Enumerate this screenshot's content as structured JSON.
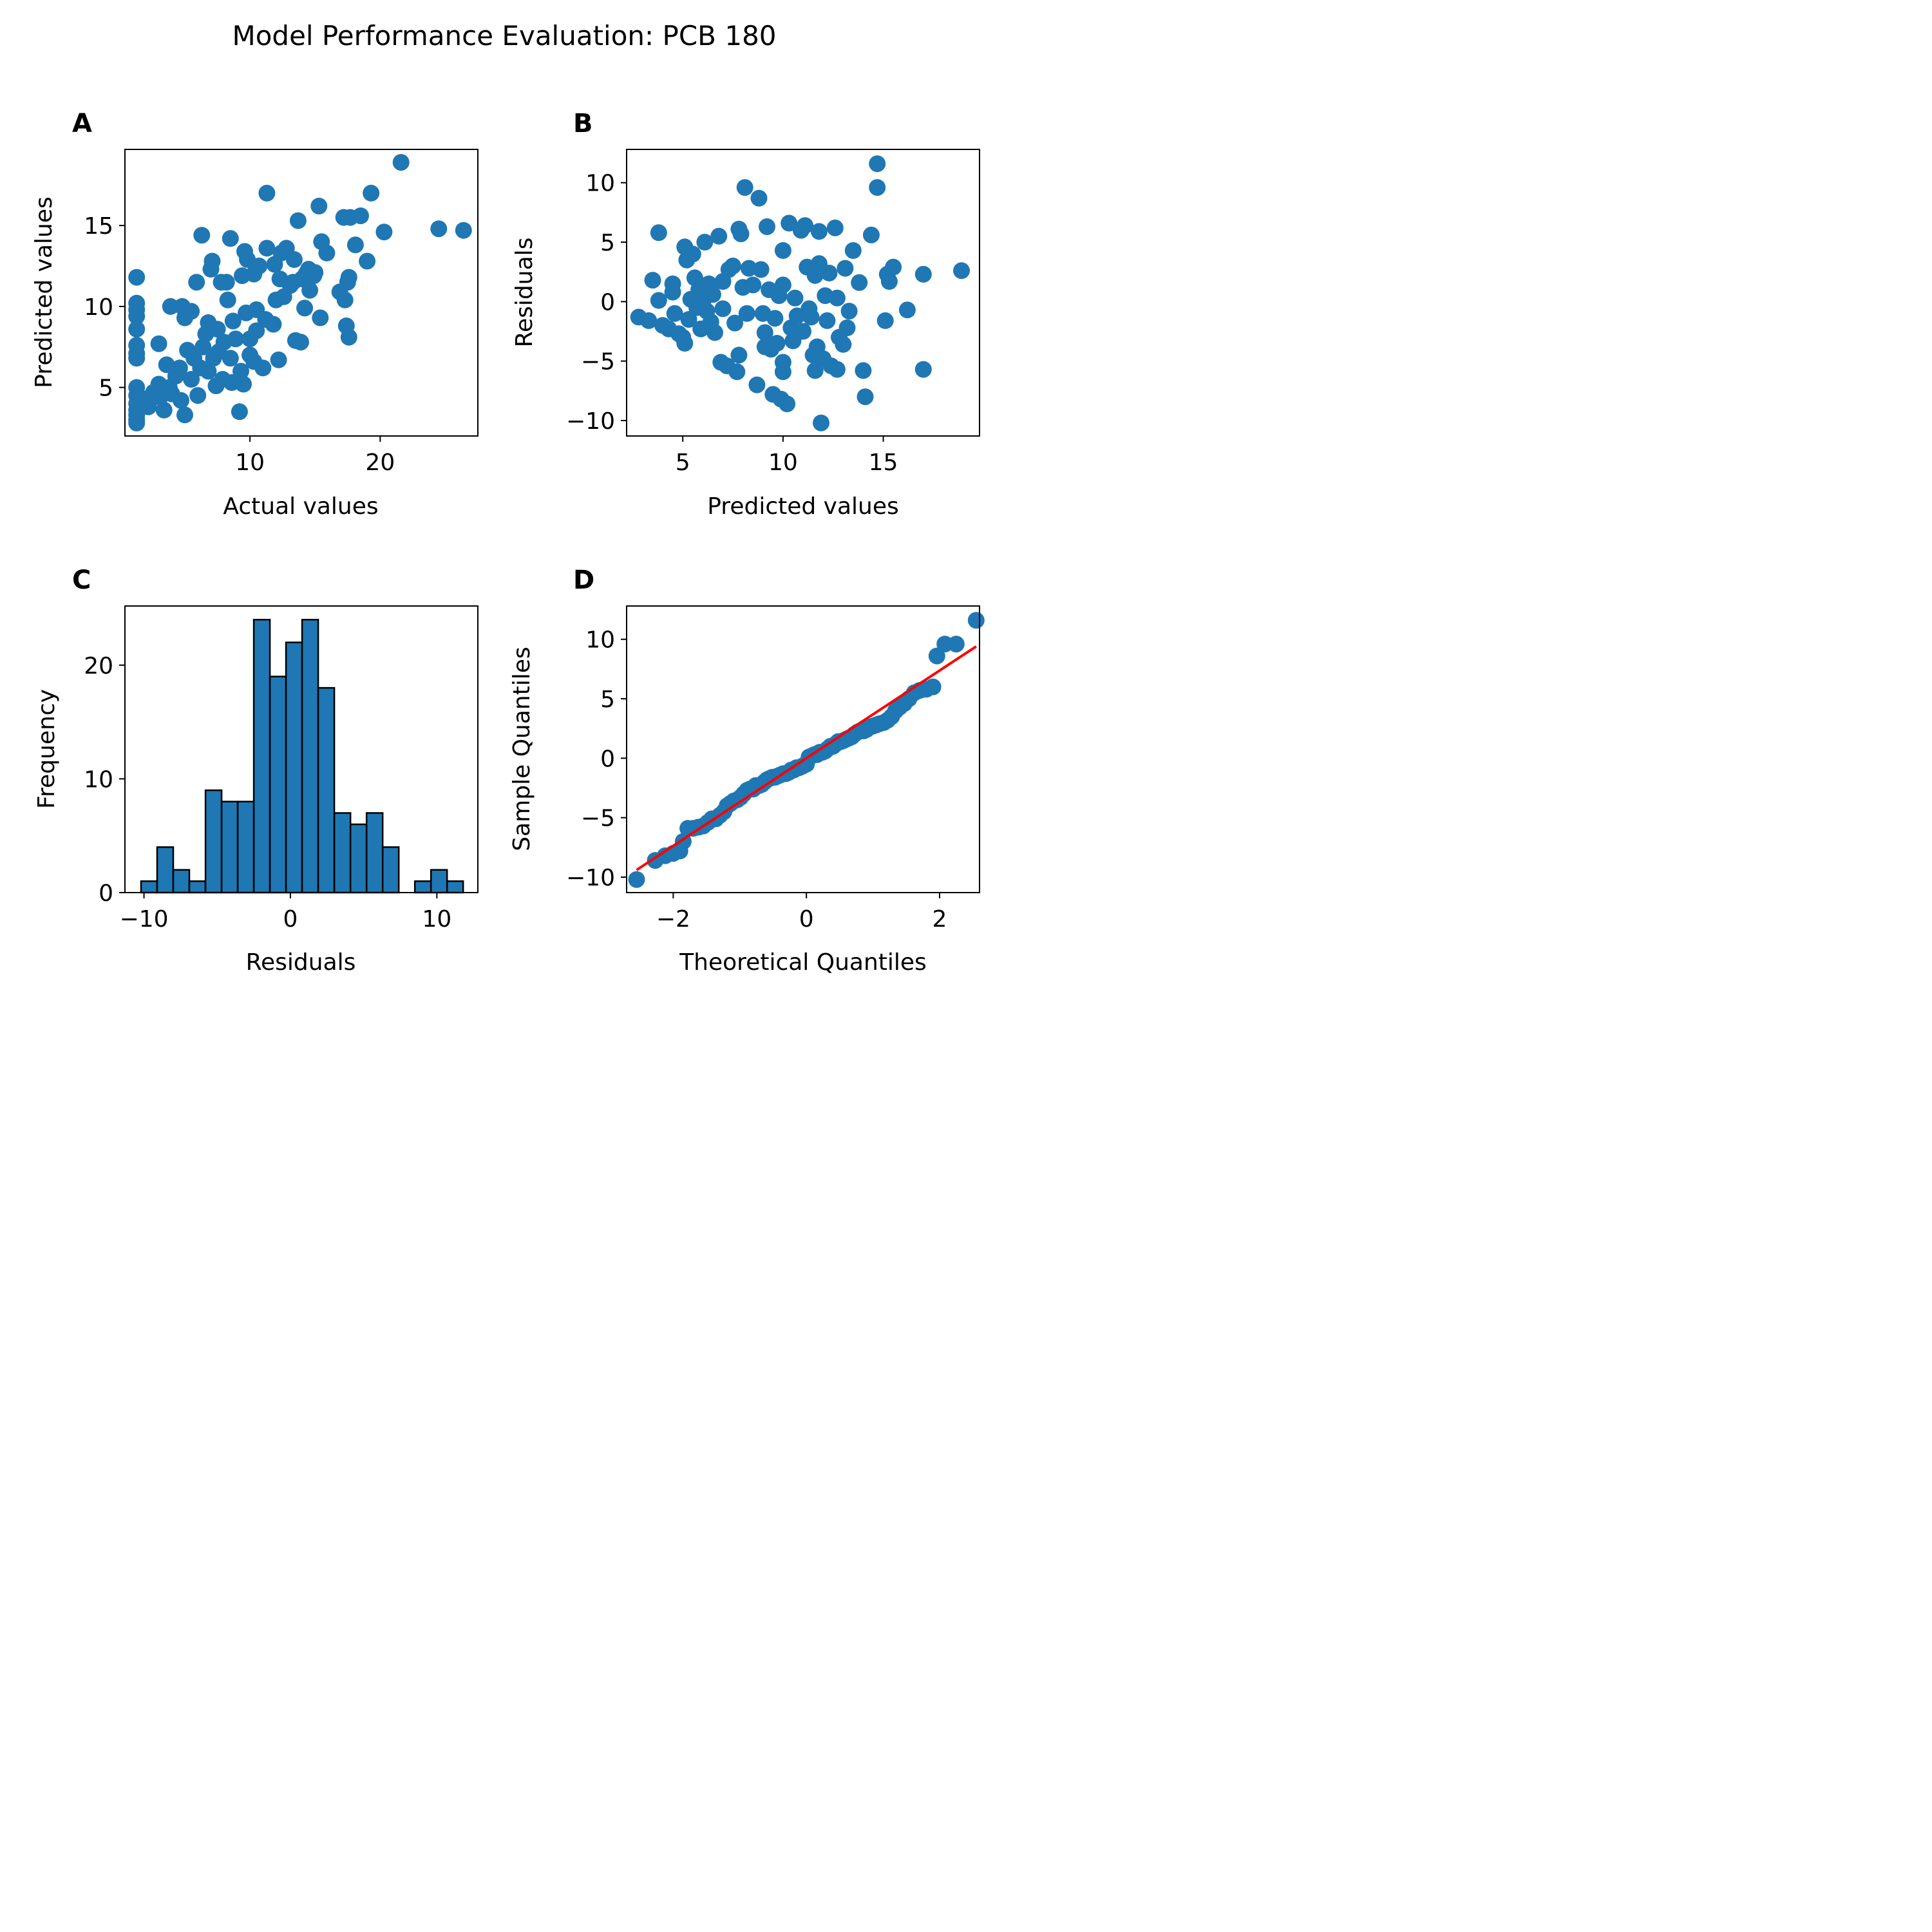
{
  "figure": {
    "title": "Model Performance Evaluation: PCB 180",
    "panels": {
      "A": {
        "letter": "A",
        "xlabel": "Actual values",
        "ylabel": "Predicted values"
      },
      "B": {
        "letter": "B",
        "xlabel": "Predicted values",
        "ylabel": "Residuals"
      },
      "C": {
        "letter": "C",
        "xlabel": "Residuals",
        "ylabel": "Frequency"
      },
      "D": {
        "letter": "D",
        "xlabel": "Theoretical Quantiles",
        "ylabel": "Sample Quantiles"
      }
    },
    "colors": {
      "marker": "#1f77b4",
      "fit_line": "#ff0000",
      "bar_edge": "#000000"
    }
  },
  "chart_data": [
    {
      "panel": "A",
      "type": "scatter",
      "title": "",
      "xlabel": "Actual values",
      "ylabel": "Predicted values",
      "xlim": [
        0.4,
        27.5
      ],
      "ylim": [
        2.0,
        19.7
      ],
      "xticks": [
        10,
        20
      ],
      "yticks": [
        5,
        10,
        15
      ],
      "grid": false,
      "points": [
        [
          1.3,
          11.8
        ],
        [
          1.3,
          10.2
        ],
        [
          1.3,
          9.8
        ],
        [
          1.3,
          9.4
        ],
        [
          1.3,
          8.6
        ],
        [
          1.3,
          7.6
        ],
        [
          1.3,
          7.1
        ],
        [
          1.3,
          6.8
        ],
        [
          1.3,
          5.0
        ],
        [
          1.3,
          4.5
        ],
        [
          1.3,
          4.0
        ],
        [
          1.3,
          3.6
        ],
        [
          1.3,
          3.3
        ],
        [
          1.3,
          3.0
        ],
        [
          1.3,
          2.8
        ],
        [
          2.0,
          4.3
        ],
        [
          2.2,
          3.8
        ],
        [
          2.6,
          4.7
        ],
        [
          3.0,
          7.7
        ],
        [
          3.0,
          5.2
        ],
        [
          3.1,
          4.4
        ],
        [
          3.4,
          3.6
        ],
        [
          3.6,
          6.4
        ],
        [
          3.8,
          5.0
        ],
        [
          3.9,
          10.0
        ],
        [
          4.0,
          4.6
        ],
        [
          4.3,
          5.7
        ],
        [
          4.6,
          6.2
        ],
        [
          4.7,
          4.2
        ],
        [
          4.8,
          10.0
        ],
        [
          5.0,
          3.3
        ],
        [
          5.0,
          9.3
        ],
        [
          5.2,
          7.3
        ],
        [
          5.5,
          9.7
        ],
        [
          5.5,
          5.5
        ],
        [
          5.7,
          6.8
        ],
        [
          5.9,
          11.5
        ],
        [
          6.0,
          4.5
        ],
        [
          6.2,
          6.2
        ],
        [
          6.3,
          14.4
        ],
        [
          6.4,
          7.5
        ],
        [
          6.6,
          8.3
        ],
        [
          6.8,
          6.0
        ],
        [
          6.8,
          9.0
        ],
        [
          7.0,
          12.3
        ],
        [
          7.1,
          12.8
        ],
        [
          7.2,
          6.8
        ],
        [
          7.4,
          5.1
        ],
        [
          7.5,
          8.6
        ],
        [
          7.6,
          7.2
        ],
        [
          7.8,
          11.5
        ],
        [
          7.9,
          5.5
        ],
        [
          8.0,
          7.8
        ],
        [
          8.2,
          11.5
        ],
        [
          8.3,
          10.4
        ],
        [
          8.5,
          6.8
        ],
        [
          8.5,
          14.2
        ],
        [
          8.6,
          5.3
        ],
        [
          8.7,
          9.1
        ],
        [
          8.9,
          8.0
        ],
        [
          9.2,
          3.5
        ],
        [
          9.3,
          6.0
        ],
        [
          9.4,
          11.9
        ],
        [
          9.5,
          5.2
        ],
        [
          9.6,
          13.4
        ],
        [
          9.7,
          9.6
        ],
        [
          9.8,
          12.9
        ],
        [
          10.0,
          8.0
        ],
        [
          10.0,
          7.0
        ],
        [
          10.3,
          12.0
        ],
        [
          10.3,
          6.6
        ],
        [
          10.5,
          9.8
        ],
        [
          10.5,
          8.5
        ],
        [
          10.7,
          12.5
        ],
        [
          11.0,
          6.2
        ],
        [
          11.2,
          9.2
        ],
        [
          11.3,
          17.0
        ],
        [
          11.3,
          13.6
        ],
        [
          11.8,
          8.9
        ],
        [
          11.9,
          12.6
        ],
        [
          12.0,
          10.4
        ],
        [
          12.2,
          6.7
        ],
        [
          12.3,
          11.7
        ],
        [
          12.4,
          13.3
        ],
        [
          12.6,
          10.6
        ],
        [
          12.8,
          13.6
        ],
        [
          13.1,
          11.3
        ],
        [
          13.3,
          11.5
        ],
        [
          13.4,
          12.9
        ],
        [
          13.5,
          7.9
        ],
        [
          13.7,
          15.3
        ],
        [
          13.9,
          7.8
        ],
        [
          14.0,
          11.7
        ],
        [
          14.2,
          9.9
        ],
        [
          14.3,
          12.0
        ],
        [
          14.5,
          12.3
        ],
        [
          14.6,
          11.0
        ],
        [
          14.9,
          11.9
        ],
        [
          15.0,
          12.1
        ],
        [
          15.3,
          16.2
        ],
        [
          15.4,
          9.3
        ],
        [
          15.5,
          14.0
        ],
        [
          15.9,
          13.3
        ],
        [
          16.9,
          10.9
        ],
        [
          17.2,
          15.5
        ],
        [
          17.3,
          10.4
        ],
        [
          17.4,
          8.8
        ],
        [
          17.5,
          11.5
        ],
        [
          17.6,
          11.8
        ],
        [
          17.6,
          8.1
        ],
        [
          17.7,
          15.5
        ],
        [
          18.1,
          13.8
        ],
        [
          18.5,
          15.6
        ],
        [
          19.0,
          12.8
        ],
        [
          19.3,
          17.0
        ],
        [
          20.3,
          14.6
        ],
        [
          21.6,
          18.9
        ],
        [
          24.5,
          14.8
        ],
        [
          26.4,
          14.7
        ]
      ]
    },
    {
      "panel": "B",
      "type": "scatter",
      "title": "",
      "xlabel": "Predicted values",
      "ylabel": "Residuals",
      "xlim": [
        2.2,
        19.8
      ],
      "ylim": [
        -11.3,
        12.8
      ],
      "xticks": [
        5,
        10,
        15
      ],
      "yticks": [
        -10,
        -5,
        0,
        5,
        10
      ],
      "grid": false,
      "points": [
        [
          2.8,
          -1.3
        ],
        [
          3.3,
          -1.6
        ],
        [
          3.5,
          1.8
        ],
        [
          3.8,
          5.8
        ],
        [
          3.8,
          0.1
        ],
        [
          4.0,
          -2.0
        ],
        [
          4.3,
          -2.3
        ],
        [
          4.5,
          1.5
        ],
        [
          4.5,
          0.8
        ],
        [
          4.6,
          -1.0
        ],
        [
          4.8,
          -2.7
        ],
        [
          5.0,
          -3.0
        ],
        [
          5.1,
          4.6
        ],
        [
          5.1,
          -3.5
        ],
        [
          5.2,
          3.5
        ],
        [
          5.3,
          -1.5
        ],
        [
          5.4,
          0.2
        ],
        [
          5.5,
          4.0
        ],
        [
          5.6,
          2.0
        ],
        [
          5.7,
          -0.5
        ],
        [
          5.8,
          1.0
        ],
        [
          5.9,
          -2.3
        ],
        [
          6.0,
          -0.2
        ],
        [
          6.1,
          5.0
        ],
        [
          6.2,
          -0.8
        ],
        [
          6.3,
          1.5
        ],
        [
          6.4,
          -1.7
        ],
        [
          6.5,
          0.6
        ],
        [
          6.6,
          -2.6
        ],
        [
          6.8,
          5.5
        ],
        [
          6.9,
          -5.1
        ],
        [
          7.0,
          1.7
        ],
        [
          7.0,
          -0.6
        ],
        [
          7.2,
          -5.4
        ],
        [
          7.3,
          2.7
        ],
        [
          7.5,
          3.0
        ],
        [
          7.6,
          -1.8
        ],
        [
          7.7,
          -5.9
        ],
        [
          7.8,
          6.1
        ],
        [
          7.8,
          -4.5
        ],
        [
          7.9,
          5.7
        ],
        [
          8.0,
          1.2
        ],
        [
          8.1,
          9.6
        ],
        [
          8.2,
          -1.0
        ],
        [
          8.3,
          2.8
        ],
        [
          8.5,
          1.4
        ],
        [
          8.7,
          -7.0
        ],
        [
          8.8,
          8.7
        ],
        [
          8.9,
          2.7
        ],
        [
          9.0,
          -1.0
        ],
        [
          9.1,
          -2.6
        ],
        [
          9.1,
          -3.8
        ],
        [
          9.2,
          6.3
        ],
        [
          9.3,
          1.0
        ],
        [
          9.4,
          -4.0
        ],
        [
          9.5,
          -7.8
        ],
        [
          9.6,
          -1.4
        ],
        [
          9.7,
          -3.5
        ],
        [
          9.8,
          0.5
        ],
        [
          9.9,
          -8.2
        ],
        [
          10.0,
          4.3
        ],
        [
          10.0,
          1.4
        ],
        [
          10.0,
          -5.1
        ],
        [
          10.0,
          -5.9
        ],
        [
          10.2,
          -8.6
        ],
        [
          10.3,
          6.6
        ],
        [
          10.4,
          -2.2
        ],
        [
          10.5,
          -3.3
        ],
        [
          10.6,
          0.3
        ],
        [
          10.7,
          -1.2
        ],
        [
          10.9,
          6.0
        ],
        [
          11.0,
          -2.5
        ],
        [
          11.1,
          6.4
        ],
        [
          11.2,
          2.9
        ],
        [
          11.3,
          -0.6
        ],
        [
          11.4,
          -1.3
        ],
        [
          11.5,
          -4.5
        ],
        [
          11.6,
          -5.8
        ],
        [
          11.6,
          2.2
        ],
        [
          11.7,
          -3.8
        ],
        [
          11.8,
          5.9
        ],
        [
          11.8,
          3.2
        ],
        [
          11.9,
          -10.2
        ],
        [
          12.0,
          -4.8
        ],
        [
          12.1,
          0.5
        ],
        [
          12.2,
          -1.6
        ],
        [
          12.3,
          2.4
        ],
        [
          12.4,
          -5.4
        ],
        [
          12.6,
          6.2
        ],
        [
          12.7,
          -5.7
        ],
        [
          12.7,
          0.3
        ],
        [
          12.8,
          -3.0
        ],
        [
          13.0,
          -3.6
        ],
        [
          13.1,
          2.8
        ],
        [
          13.2,
          -2.2
        ],
        [
          13.3,
          -0.8
        ],
        [
          13.5,
          4.3
        ],
        [
          13.8,
          1.6
        ],
        [
          14.0,
          -5.8
        ],
        [
          14.1,
          -8.0
        ],
        [
          14.4,
          5.6
        ],
        [
          14.7,
          11.6
        ],
        [
          14.7,
          9.6
        ],
        [
          15.1,
          -1.6
        ],
        [
          15.2,
          2.3
        ],
        [
          15.3,
          1.7
        ],
        [
          15.5,
          2.9
        ],
        [
          16.2,
          -0.7
        ],
        [
          17.0,
          2.3
        ],
        [
          17.0,
          -5.7
        ],
        [
          18.9,
          2.6
        ]
      ]
    },
    {
      "panel": "C",
      "type": "bar",
      "title": "",
      "xlabel": "Residuals",
      "ylabel": "Frequency",
      "xlim": [
        -11.3,
        12.8
      ],
      "ylim": [
        0,
        25.2
      ],
      "xticks": [
        -10,
        0,
        10
      ],
      "yticks": [
        0,
        10,
        20
      ],
      "grid": false,
      "bin_edges": [
        -10.2,
        -9.1,
        -8.0,
        -6.9,
        -5.8,
        -4.7,
        -3.6,
        -2.5,
        -1.4,
        -0.3,
        0.8,
        1.9,
        3.0,
        4.1,
        5.2,
        6.3,
        7.4,
        8.5,
        9.6,
        10.7,
        11.8
      ],
      "counts": [
        1,
        4,
        2,
        1,
        9,
        8,
        8,
        24,
        19,
        22,
        24,
        18,
        7,
        6,
        7,
        4,
        0,
        1,
        2,
        1
      ]
    },
    {
      "panel": "D",
      "type": "scatter",
      "title": "",
      "xlabel": "Theoretical Quantiles",
      "ylabel": "Sample Quantiles",
      "xlim": [
        -2.7,
        2.6
      ],
      "ylim": [
        -11.3,
        12.8
      ],
      "xticks": [
        -2,
        0,
        2
      ],
      "yticks": [
        -10,
        -5,
        0,
        5,
        10
      ],
      "grid": false,
      "reference_line": {
        "x": [
          -2.55,
          2.55
        ],
        "y": [
          -9.4,
          9.4
        ]
      },
      "points": [
        [
          -2.55,
          -10.2
        ],
        [
          -2.27,
          -8.6
        ],
        [
          -2.12,
          -8.2
        ],
        [
          -2.0,
          -8.0
        ],
        [
          -1.9,
          -7.8
        ],
        [
          -1.85,
          -7.0
        ],
        [
          -1.78,
          -5.9
        ],
        [
          -1.7,
          -5.9
        ],
        [
          -1.62,
          -5.8
        ],
        [
          -1.55,
          -5.7
        ],
        [
          -1.48,
          -5.4
        ],
        [
          -1.42,
          -5.1
        ],
        [
          -1.36,
          -5.1
        ],
        [
          -1.3,
          -4.8
        ],
        [
          -1.24,
          -4.5
        ],
        [
          -1.19,
          -4.0
        ],
        [
          -1.14,
          -3.8
        ],
        [
          -1.09,
          -3.6
        ],
        [
          -1.04,
          -3.5
        ],
        [
          -0.99,
          -3.3
        ],
        [
          -0.94,
          -3.0
        ],
        [
          -0.89,
          -2.7
        ],
        [
          -0.85,
          -2.6
        ],
        [
          -0.8,
          -2.6
        ],
        [
          -0.76,
          -2.3
        ],
        [
          -0.71,
          -2.3
        ],
        [
          -0.67,
          -2.2
        ],
        [
          -0.63,
          -2.0
        ],
        [
          -0.59,
          -1.8
        ],
        [
          -0.55,
          -1.7
        ],
        [
          -0.51,
          -1.6
        ],
        [
          -0.47,
          -1.6
        ],
        [
          -0.43,
          -1.5
        ],
        [
          -0.39,
          -1.4
        ],
        [
          -0.35,
          -1.3
        ],
        [
          -0.31,
          -1.3
        ],
        [
          -0.27,
          -1.2
        ],
        [
          -0.23,
          -1.0
        ],
        [
          -0.19,
          -1.0
        ],
        [
          -0.15,
          -0.8
        ],
        [
          -0.11,
          -0.8
        ],
        [
          -0.07,
          -0.7
        ],
        [
          -0.04,
          -0.6
        ],
        [
          0.0,
          -0.5
        ],
        [
          0.04,
          0.1
        ],
        [
          0.08,
          0.2
        ],
        [
          0.12,
          0.3
        ],
        [
          0.16,
          0.3
        ],
        [
          0.2,
          0.5
        ],
        [
          0.24,
          0.5
        ],
        [
          0.28,
          0.6
        ],
        [
          0.32,
          0.8
        ],
        [
          0.36,
          1.0
        ],
        [
          0.4,
          1.0
        ],
        [
          0.44,
          1.2
        ],
        [
          0.48,
          1.4
        ],
        [
          0.52,
          1.4
        ],
        [
          0.56,
          1.5
        ],
        [
          0.6,
          1.6
        ],
        [
          0.64,
          1.7
        ],
        [
          0.68,
          1.8
        ],
        [
          0.72,
          2.0
        ],
        [
          0.77,
          2.2
        ],
        [
          0.81,
          2.3
        ],
        [
          0.86,
          2.3
        ],
        [
          0.9,
          2.4
        ],
        [
          0.95,
          2.6
        ],
        [
          1.0,
          2.7
        ],
        [
          1.05,
          2.8
        ],
        [
          1.1,
          2.9
        ],
        [
          1.16,
          3.0
        ],
        [
          1.22,
          3.2
        ],
        [
          1.28,
          3.5
        ],
        [
          1.34,
          4.0
        ],
        [
          1.4,
          4.3
        ],
        [
          1.47,
          4.6
        ],
        [
          1.54,
          5.0
        ],
        [
          1.62,
          5.5
        ],
        [
          1.7,
          5.7
        ],
        [
          1.8,
          5.8
        ],
        [
          1.9,
          6.0
        ],
        [
          1.96,
          8.6
        ],
        [
          2.08,
          9.6
        ],
        [
          2.25,
          9.6
        ],
        [
          2.55,
          11.6
        ]
      ]
    }
  ]
}
